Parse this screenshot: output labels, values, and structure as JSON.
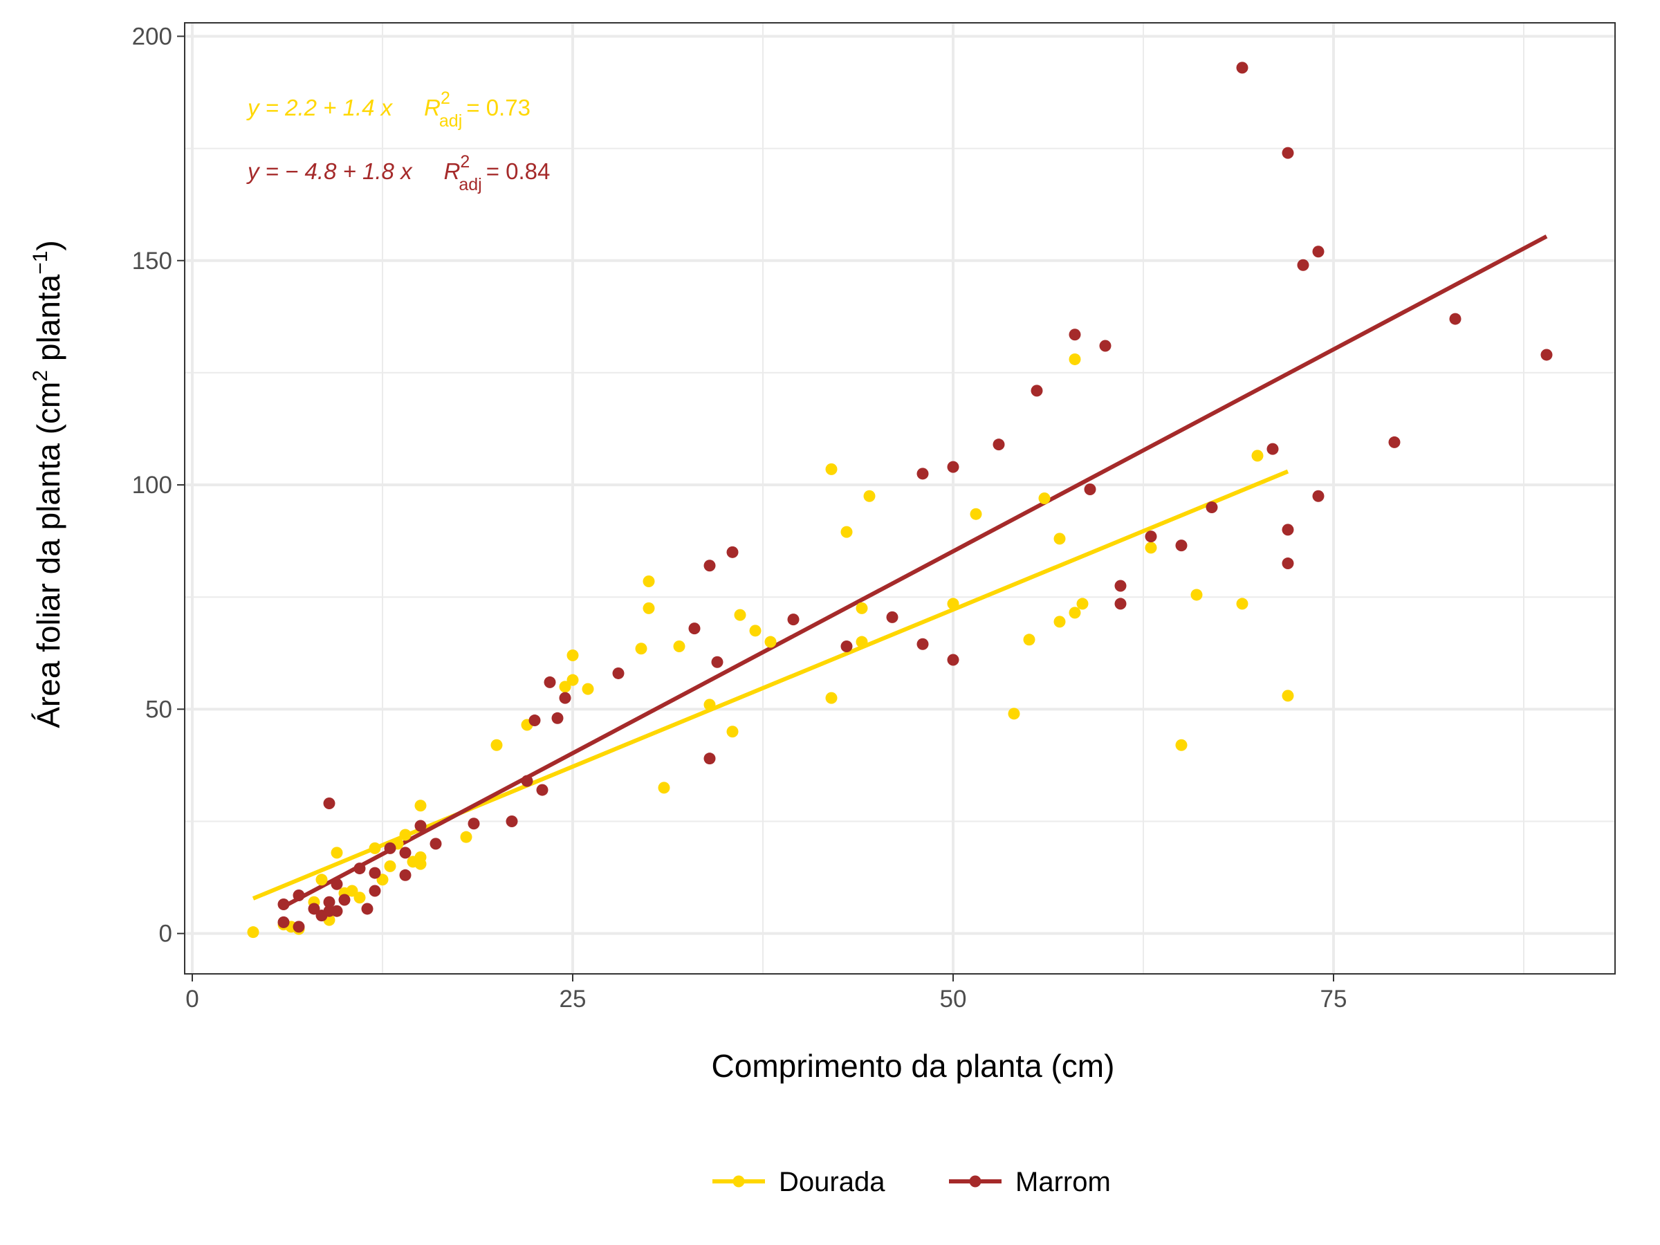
{
  "chart_data": {
    "type": "scatter",
    "xlabel": "Comprimento da planta (cm)",
    "ylabel_main": "Área foliar da planta (cm",
    "ylabel_sup1": "2",
    "ylabel_mid": " planta",
    "ylabel_sup2": "−1",
    "ylabel_end": ")",
    "xlim": [
      -0.5,
      93.5
    ],
    "ylim": [
      -9,
      203
    ],
    "xticks": [
      0,
      25,
      50,
      75
    ],
    "yticks": [
      0,
      50,
      100,
      150,
      200
    ],
    "xtick_labels": [
      "0",
      "25",
      "50",
      "75"
    ],
    "ytick_labels": [
      "0",
      "50",
      "100",
      "150",
      "200"
    ],
    "grid": true,
    "legend_position": "bottom",
    "series": [
      {
        "name": "Dourada",
        "color": "#FFD700",
        "fit": {
          "intercept": 2.2,
          "slope": 1.4,
          "x_range": [
            4,
            72
          ]
        },
        "equation": {
          "lhs": "y = 2.2 + 1.4 x",
          "r_sup": "2",
          "r_sub": "adj",
          "rhs": "= 0.73"
        },
        "points": [
          [
            4,
            0.3
          ],
          [
            6,
            2
          ],
          [
            6.5,
            1.5
          ],
          [
            7,
            1
          ],
          [
            8,
            7
          ],
          [
            8.5,
            12
          ],
          [
            9,
            3
          ],
          [
            9.5,
            18
          ],
          [
            10,
            9
          ],
          [
            10.5,
            9.5
          ],
          [
            11,
            8
          ],
          [
            12,
            19
          ],
          [
            12.5,
            12
          ],
          [
            13,
            15
          ],
          [
            13.5,
            20
          ],
          [
            14,
            22
          ],
          [
            14.5,
            16
          ],
          [
            15,
            28.5
          ],
          [
            15,
            17
          ],
          [
            15,
            15.5
          ],
          [
            18,
            21.5
          ],
          [
            20,
            42
          ],
          [
            22,
            46.5
          ],
          [
            24.5,
            55
          ],
          [
            25,
            56.5
          ],
          [
            25,
            62
          ],
          [
            26,
            54.5
          ],
          [
            29.5,
            63.5
          ],
          [
            30,
            72.5
          ],
          [
            30,
            78.5
          ],
          [
            31,
            32.5
          ],
          [
            32,
            64
          ],
          [
            34,
            51
          ],
          [
            35.5,
            45
          ],
          [
            36,
            71
          ],
          [
            37,
            67.5
          ],
          [
            38,
            65
          ],
          [
            42,
            103.5
          ],
          [
            42,
            52.5
          ],
          [
            43,
            89.5
          ],
          [
            44,
            72.5
          ],
          [
            44,
            65
          ],
          [
            44.5,
            97.5
          ],
          [
            50,
            73.5
          ],
          [
            51.5,
            93.5
          ],
          [
            54,
            49
          ],
          [
            55,
            65.5
          ],
          [
            56,
            97
          ],
          [
            57,
            88
          ],
          [
            57,
            69.5
          ],
          [
            58,
            71.5
          ],
          [
            58,
            128
          ],
          [
            58.5,
            73.5
          ],
          [
            63,
            86
          ],
          [
            65,
            42
          ],
          [
            66,
            75.5
          ],
          [
            69,
            73.5
          ],
          [
            70,
            106.5
          ],
          [
            72,
            53
          ]
        ]
      },
      {
        "name": "Marrom",
        "color": "#A52A2A",
        "fit": {
          "intercept": -4.8,
          "slope": 1.8,
          "x_range": [
            6,
            89
          ]
        },
        "equation": {
          "lhs": "y = − 4.8 + 1.8 x",
          "r_sup": "2",
          "r_sub": "adj",
          "rhs": "= 0.84"
        },
        "points": [
          [
            6,
            6.5
          ],
          [
            6,
            2.5
          ],
          [
            7,
            8.5
          ],
          [
            7,
            1.5
          ],
          [
            8,
            5.5
          ],
          [
            8.5,
            4
          ],
          [
            9,
            5
          ],
          [
            9,
            7
          ],
          [
            9,
            29
          ],
          [
            9.5,
            5
          ],
          [
            9.5,
            11
          ],
          [
            10,
            7.5
          ],
          [
            11,
            14.5
          ],
          [
            11.5,
            5.5
          ],
          [
            12,
            13.5
          ],
          [
            12,
            9.5
          ],
          [
            13,
            19
          ],
          [
            14,
            18
          ],
          [
            14,
            13
          ],
          [
            15,
            24
          ],
          [
            16,
            20
          ],
          [
            18.5,
            24.5
          ],
          [
            21,
            25
          ],
          [
            22,
            34
          ],
          [
            22.5,
            47.5
          ],
          [
            23,
            32
          ],
          [
            23.5,
            56
          ],
          [
            24,
            48
          ],
          [
            24.5,
            52.5
          ],
          [
            28,
            58
          ],
          [
            33,
            68
          ],
          [
            34,
            39
          ],
          [
            34,
            82
          ],
          [
            34.5,
            60.5
          ],
          [
            35.5,
            85
          ],
          [
            39.5,
            70
          ],
          [
            43,
            64
          ],
          [
            46,
            70.5
          ],
          [
            48,
            102.5
          ],
          [
            48,
            64.5
          ],
          [
            50,
            104
          ],
          [
            50,
            61
          ],
          [
            53,
            109
          ],
          [
            55.5,
            121
          ],
          [
            58,
            133.5
          ],
          [
            59,
            99
          ],
          [
            60,
            131
          ],
          [
            61,
            77.5
          ],
          [
            61,
            73.5
          ],
          [
            63,
            88.5
          ],
          [
            65,
            86.5
          ],
          [
            67,
            95
          ],
          [
            69,
            193
          ],
          [
            71,
            108
          ],
          [
            72,
            174
          ],
          [
            72,
            90
          ],
          [
            72,
            82.5
          ],
          [
            73,
            149
          ],
          [
            74,
            152
          ],
          [
            74,
            97.5
          ],
          [
            79,
            109.5
          ],
          [
            83,
            137
          ],
          [
            89,
            129
          ]
        ]
      }
    ]
  }
}
